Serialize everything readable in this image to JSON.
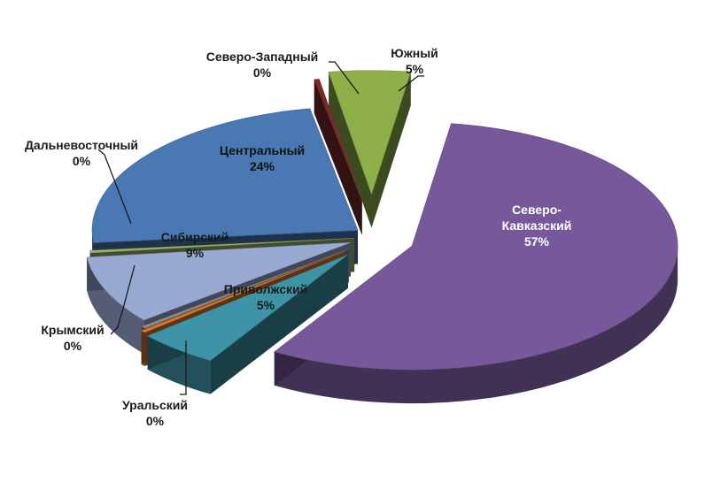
{
  "chart_data": {
    "type": "pie",
    "style": "3d-exploded",
    "legend": "none",
    "slices": [
      {
        "name": "Северо-Кавказский",
        "label_lines": [
          "Северо-",
          "Кавказский"
        ],
        "value": 57,
        "value_label": "57%",
        "color": "#77599b"
      },
      {
        "name": "Приволжский",
        "label_lines": [
          "Приволжский"
        ],
        "value": 5,
        "value_label": "5%",
        "color": "#3e93a7"
      },
      {
        "name": "Уральский",
        "label_lines": [
          "Уральский"
        ],
        "value": 0,
        "value_label": "0%",
        "color": "#d8772a"
      },
      {
        "name": "Крымский",
        "label_lines": [
          "Крымский"
        ],
        "value": 0,
        "value_label": "0%",
        "color": "#8a8a8a"
      },
      {
        "name": "Сибирский",
        "label_lines": [
          "Сибирский"
        ],
        "value": 9,
        "value_label": "9%",
        "color": "#98a9d2"
      },
      {
        "name": "Дальневосточный",
        "label_lines": [
          "Дальневосточный"
        ],
        "value": 0,
        "value_label": "0%",
        "color": "#9db56c"
      },
      {
        "name": "Центральный",
        "label_lines": [
          "Центральный"
        ],
        "value": 24,
        "value_label": "24%",
        "color": "#4a78b3"
      },
      {
        "name": "Северо-Западный",
        "label_lines": [
          "Северо-Западный"
        ],
        "value": 0,
        "value_label": "0%",
        "color": "#7a2a2a"
      },
      {
        "name": "Южный",
        "label_lines": [
          "Южный"
        ],
        "value": 5,
        "value_label": "5%",
        "color": "#8fb049"
      }
    ]
  }
}
